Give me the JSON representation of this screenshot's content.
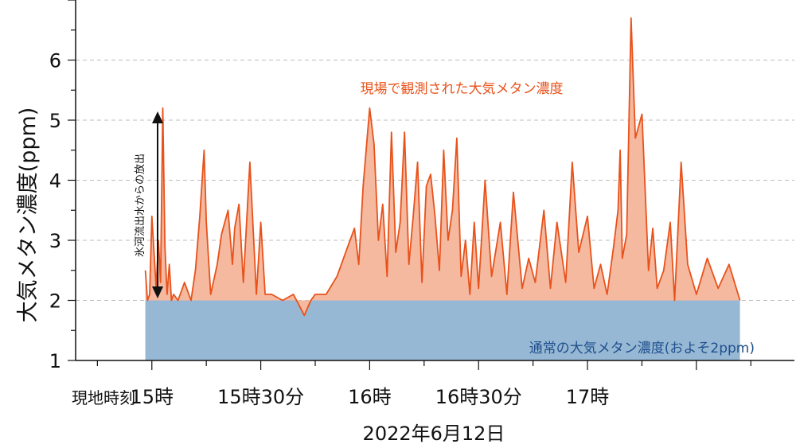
{
  "chart_data": {
    "type": "area",
    "ylabel": "大気メタン濃度(ppm)",
    "ylim": [
      1,
      7
    ],
    "yticks": [
      "1",
      "2",
      "3",
      "4",
      "5",
      "6"
    ],
    "xlim": [
      14.65,
      17.95
    ],
    "xticks": [
      {
        "x": 15.0,
        "label": "15時"
      },
      {
        "x": 15.5,
        "label": "15時30分"
      },
      {
        "x": 16.0,
        "label": "16時"
      },
      {
        "x": 16.5,
        "label": "16時30分"
      },
      {
        "x": 17.0,
        "label": "17時"
      }
    ],
    "xlabel_prefix": "現地時刻",
    "date_label": "2022年6月12日",
    "grid": "horizontal dashed",
    "baseline": {
      "value": 2.0,
      "x_start": 14.97,
      "x_end": 17.7,
      "label": "通常の大気メタン濃度(およそ2ppm)"
    },
    "observed_label": "現場で観測された大気メタン濃度",
    "release_annotation": {
      "label": "氷河流出水からの放出",
      "from": 2.0,
      "to": 5.0
    },
    "series": [
      {
        "name": "現場で観測された大気メタン濃度",
        "x": [
          14.97,
          14.98,
          14.99,
          15.0,
          15.02,
          15.03,
          15.04,
          15.05,
          15.06,
          15.07,
          15.08,
          15.09,
          15.1,
          15.12,
          15.15,
          15.18,
          15.2,
          15.22,
          15.24,
          15.25,
          15.27,
          15.3,
          15.32,
          15.35,
          15.37,
          15.38,
          15.4,
          15.42,
          15.45,
          15.48,
          15.5,
          15.52,
          15.55,
          15.6,
          15.65,
          15.7,
          15.73,
          15.75,
          15.8,
          15.85,
          15.9,
          15.93,
          15.95,
          15.97,
          16.0,
          16.02,
          16.04,
          16.06,
          16.08,
          16.1,
          16.12,
          16.14,
          16.16,
          16.18,
          16.2,
          16.22,
          16.24,
          16.26,
          16.28,
          16.3,
          16.32,
          16.34,
          16.36,
          16.38,
          16.4,
          16.42,
          16.44,
          16.46,
          16.48,
          16.5,
          16.53,
          16.56,
          16.6,
          16.63,
          16.66,
          16.7,
          16.73,
          16.76,
          16.8,
          16.83,
          16.86,
          16.9,
          16.93,
          16.96,
          17.0,
          17.03,
          17.06,
          17.09,
          17.12,
          17.14,
          17.15,
          17.16,
          17.18,
          17.2,
          17.22,
          17.25,
          17.28,
          17.3,
          17.32,
          17.35,
          17.38,
          17.4,
          17.43,
          17.46,
          17.5,
          17.55,
          17.6,
          17.65,
          17.7
        ],
        "values": [
          2.5,
          2.0,
          2.1,
          3.4,
          2.2,
          3.0,
          2.3,
          5.2,
          2.9,
          2.1,
          2.6,
          2.0,
          2.1,
          2.0,
          2.3,
          2.0,
          2.5,
          3.4,
          4.5,
          3.3,
          2.1,
          2.6,
          3.1,
          3.5,
          2.6,
          3.2,
          3.6,
          2.3,
          4.3,
          2.1,
          3.3,
          2.1,
          2.1,
          2.0,
          2.1,
          1.75,
          2.0,
          2.1,
          2.1,
          2.4,
          2.9,
          3.2,
          2.6,
          3.9,
          5.2,
          4.6,
          3.0,
          3.6,
          2.4,
          4.8,
          2.8,
          3.3,
          4.8,
          2.6,
          3.4,
          4.3,
          2.3,
          3.9,
          4.1,
          3.4,
          2.5,
          4.5,
          3.0,
          3.5,
          4.7,
          2.4,
          3.0,
          2.1,
          3.3,
          2.2,
          4.0,
          2.4,
          3.3,
          2.1,
          3.8,
          2.2,
          2.7,
          2.3,
          3.5,
          2.2,
          3.3,
          2.3,
          4.3,
          2.8,
          3.4,
          2.2,
          2.6,
          2.1,
          2.9,
          3.5,
          4.5,
          2.7,
          3.1,
          6.7,
          4.7,
          5.1,
          2.5,
          3.2,
          2.2,
          2.5,
          3.3,
          2.0,
          4.3,
          2.6,
          2.1,
          2.7,
          2.2,
          2.6,
          2.0
        ]
      }
    ],
    "colors": {
      "observed_line": "#e8521b",
      "observed_fill": "#f5b9a0",
      "baseline_fill": "#97b8d4",
      "baseline_text": "#1f4f8c",
      "grid": "#bdbdbd"
    }
  }
}
